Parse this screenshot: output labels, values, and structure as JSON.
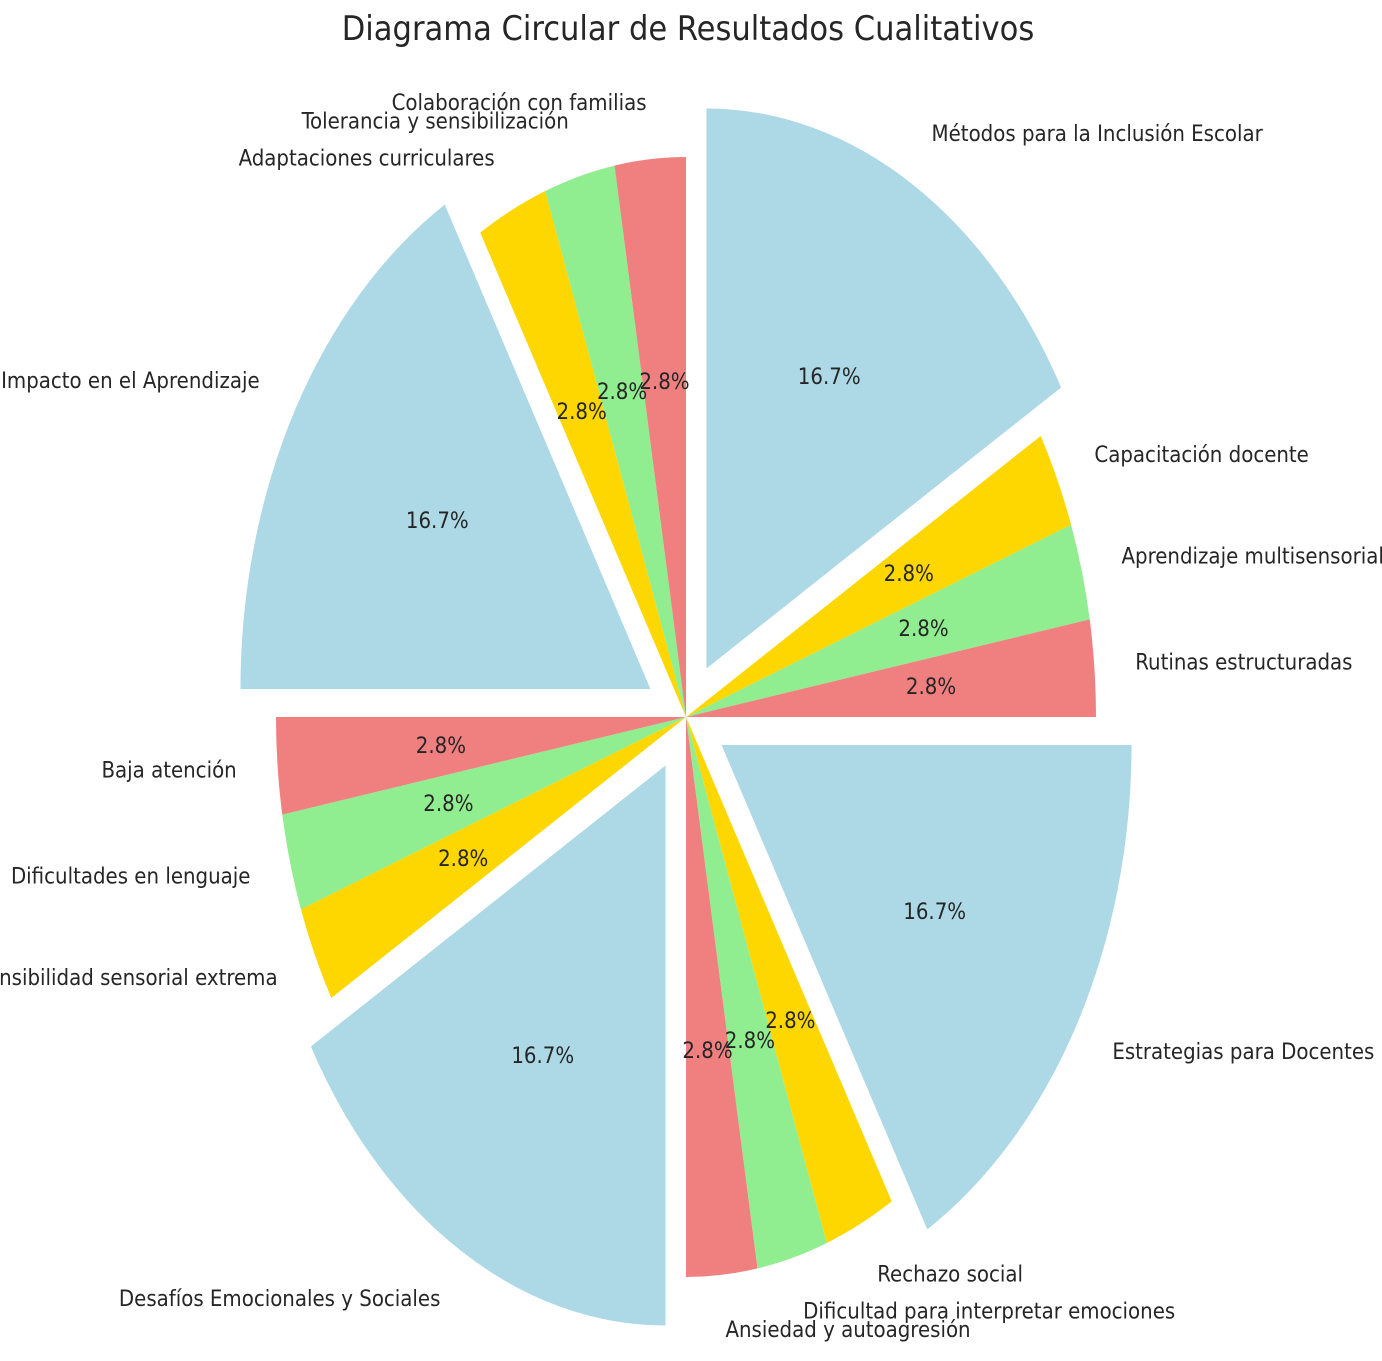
{
  "chart_data": {
    "type": "pie",
    "title": "Diagrama Circular de Resultados Cualitativos",
    "start_angle_deg": 90,
    "direction": "clockwise",
    "slices": [
      {
        "label": "Métodos para la Inclusión Escolar",
        "value": 16.7,
        "pct_text": "16.7%",
        "color": "#add8e6",
        "exploded": true
      },
      {
        "label": "Capacitación docente",
        "value": 2.8,
        "pct_text": "2.8%",
        "color": "#ffd700",
        "exploded": false
      },
      {
        "label": "Aprendizaje multisensorial",
        "value": 2.8,
        "pct_text": "2.8%",
        "color": "#90ee90",
        "exploded": false
      },
      {
        "label": "Rutinas estructuradas",
        "value": 2.8,
        "pct_text": "2.8%",
        "color": "#f08080",
        "exploded": false
      },
      {
        "label": "Estrategias para Docentes",
        "value": 16.7,
        "pct_text": "16.7%",
        "color": "#add8e6",
        "exploded": true
      },
      {
        "label": "Rechazo social",
        "value": 2.8,
        "pct_text": "2.8%",
        "color": "#ffd700",
        "exploded": false
      },
      {
        "label": "Dificultad para interpretar emociones",
        "value": 2.8,
        "pct_text": "2.8%",
        "color": "#90ee90",
        "exploded": false
      },
      {
        "label": "Ansiedad y autoagresión",
        "value": 2.8,
        "pct_text": "2.8%",
        "color": "#f08080",
        "exploded": false
      },
      {
        "label": "Desafíos Emocionales y Sociales",
        "value": 16.7,
        "pct_text": "16.7%",
        "color": "#add8e6",
        "exploded": true
      },
      {
        "label": "Sensibilidad sensorial extrema",
        "value": 2.8,
        "pct_text": "2.8%",
        "color": "#ffd700",
        "exploded": false
      },
      {
        "label": "Dificultades en lenguaje",
        "value": 2.8,
        "pct_text": "2.8%",
        "color": "#90ee90",
        "exploded": false
      },
      {
        "label": "Baja atención",
        "value": 2.8,
        "pct_text": "2.8%",
        "color": "#f08080",
        "exploded": false
      },
      {
        "label": "Impacto en el Aprendizaje",
        "value": 16.7,
        "pct_text": "16.7%",
        "color": "#add8e6",
        "exploded": true
      },
      {
        "label": "Adaptaciones curriculares",
        "value": 2.8,
        "pct_text": "2.8%",
        "color": "#ffd700",
        "exploded": false
      },
      {
        "label": "Tolerancia y sensibilización",
        "value": 2.8,
        "pct_text": "2.8%",
        "color": "#90ee90",
        "exploded": false
      },
      {
        "label": "Colaboración con familias",
        "value": 2.8,
        "pct_text": "2.8%",
        "color": "#f08080",
        "exploded": false
      }
    ]
  }
}
